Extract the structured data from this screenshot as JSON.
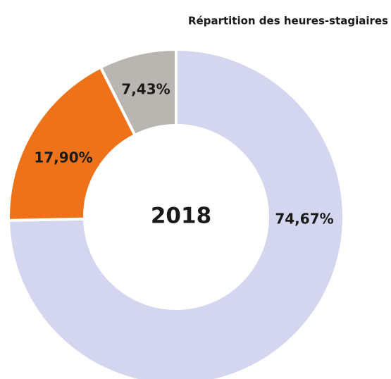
{
  "chart_data": {
    "type": "donut",
    "title": "Répartition des heures-stagiaires",
    "center_label": "2018",
    "categories": [
      null,
      null,
      null
    ],
    "values": [
      74.67,
      17.9,
      7.43
    ],
    "value_labels": [
      "74,67%",
      "17,90%",
      "7,43%"
    ],
    "colors": [
      "#d4d5ee",
      "#ee7219",
      "#b9b5b0"
    ]
  }
}
